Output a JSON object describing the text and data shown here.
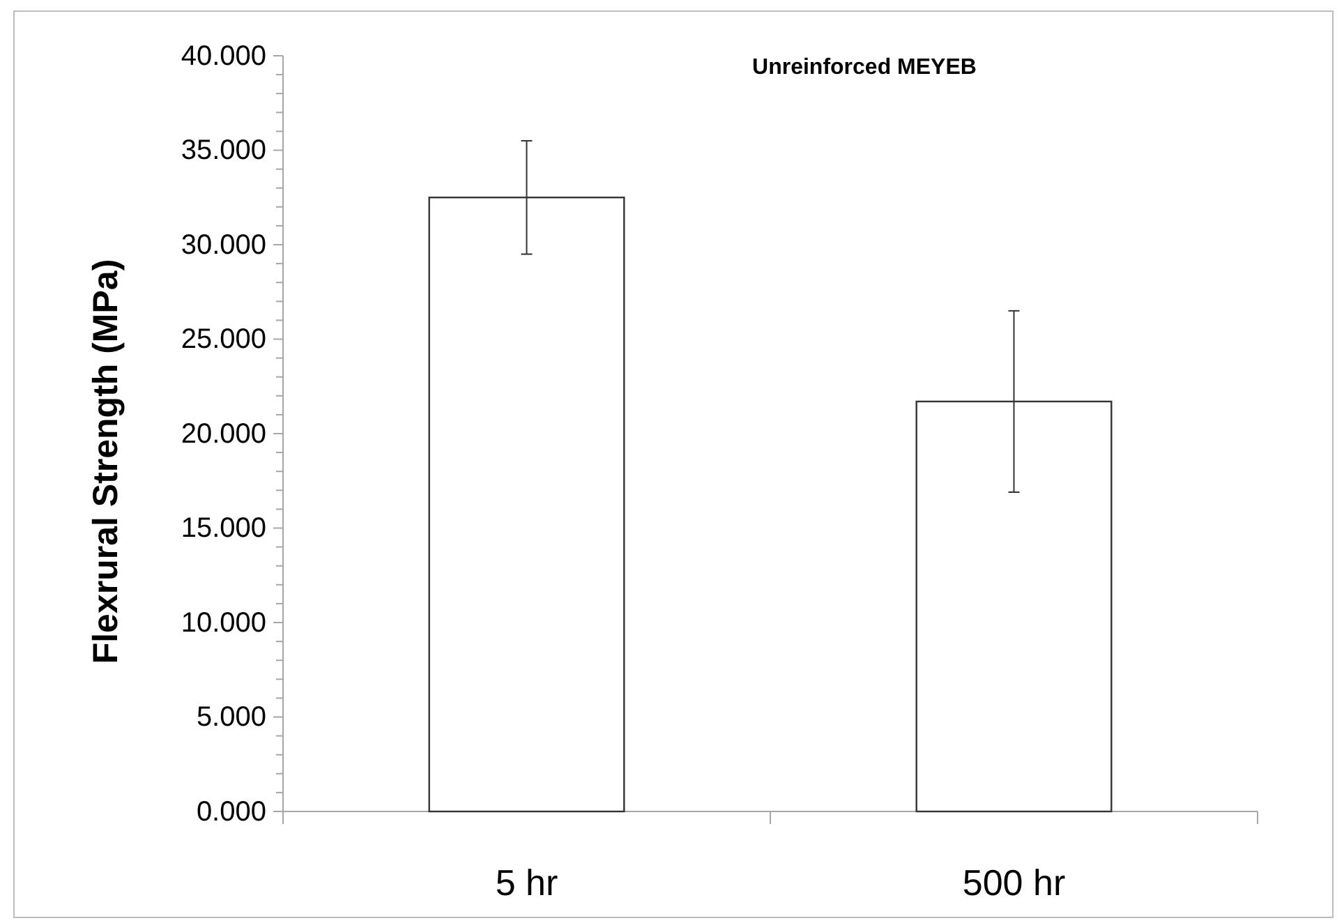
{
  "chart_data": {
    "type": "bar",
    "title": "Unreinforced MEYEB",
    "ylabel": "Flexrural Strength  (MPa)",
    "categories": [
      "5 hr",
      "500 hr"
    ],
    "values": [
      32.5,
      21.7
    ],
    "errors": [
      3.0,
      4.8
    ],
    "color": "#ffffff",
    "ylim": [
      0,
      40
    ],
    "yticks": [
      {
        "value": 0,
        "label": "0.000"
      },
      {
        "value": 1,
        "label": null
      },
      {
        "value": 2,
        "label": null
      },
      {
        "value": 3,
        "label": null
      },
      {
        "value": 4,
        "label": null
      },
      {
        "value": 5,
        "label": "5.000"
      },
      {
        "value": 6,
        "label": null
      },
      {
        "value": 7,
        "label": null
      },
      {
        "value": 8,
        "label": null
      },
      {
        "value": 9,
        "label": null
      },
      {
        "value": 10,
        "label": "10.000"
      },
      {
        "value": 11,
        "label": null
      },
      {
        "value": 12,
        "label": null
      },
      {
        "value": 13,
        "label": null
      },
      {
        "value": 14,
        "label": null
      },
      {
        "value": 15,
        "label": "15.000"
      },
      {
        "value": 16,
        "label": null
      },
      {
        "value": 17,
        "label": null
      },
      {
        "value": 18,
        "label": null
      },
      {
        "value": 19,
        "label": null
      },
      {
        "value": 20,
        "label": "20.000"
      },
      {
        "value": 21,
        "label": null
      },
      {
        "value": 22,
        "label": null
      },
      {
        "value": 23,
        "label": null
      },
      {
        "value": 24,
        "label": null
      },
      {
        "value": 25,
        "label": "25.000"
      },
      {
        "value": 26,
        "label": null
      },
      {
        "value": 27,
        "label": null
      },
      {
        "value": 28,
        "label": null
      },
      {
        "value": 29,
        "label": null
      },
      {
        "value": 30,
        "label": "30.000"
      },
      {
        "value": 31,
        "label": null
      },
      {
        "value": 32,
        "label": null
      },
      {
        "value": 33,
        "label": null
      },
      {
        "value": 34,
        "label": null
      },
      {
        "value": 35,
        "label": "35.000"
      },
      {
        "value": 36,
        "label": null
      },
      {
        "value": 37,
        "label": null
      },
      {
        "value": 38,
        "label": null
      },
      {
        "value": 39,
        "label": null
      },
      {
        "value": 40,
        "label": "40.000"
      }
    ],
    "grid": false
  }
}
